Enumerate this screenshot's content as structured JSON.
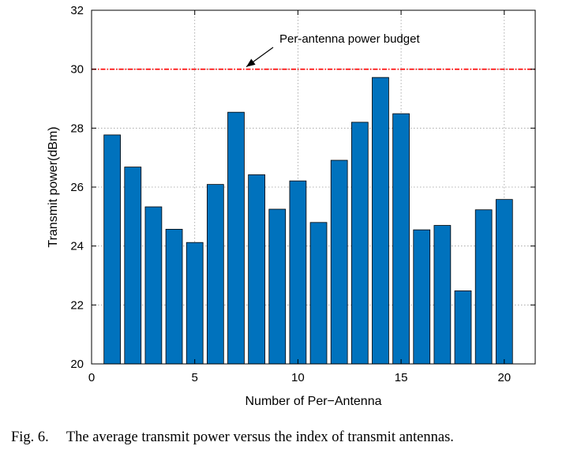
{
  "chart_data": {
    "type": "bar",
    "x": [
      1,
      2,
      3,
      4,
      5,
      6,
      7,
      8,
      9,
      10,
      11,
      12,
      13,
      14,
      15,
      16,
      17,
      18,
      19,
      20
    ],
    "values": [
      27.77,
      26.68,
      25.33,
      24.57,
      24.12,
      26.09,
      28.54,
      26.42,
      25.25,
      26.21,
      24.8,
      26.91,
      28.2,
      29.72,
      28.49,
      24.55,
      24.7,
      22.48,
      25.23,
      25.58
    ],
    "xlabel": "Number of Per−Antenna",
    "ylabel": "Transmit power(dBm)",
    "xlim": [
      0,
      21.5
    ],
    "ylim": [
      20,
      32
    ],
    "xticks": [
      0,
      5,
      10,
      15,
      20
    ],
    "yticks": [
      20,
      22,
      24,
      26,
      28,
      30,
      32
    ],
    "grid": true,
    "bar_color": "#0072BD",
    "reference_line": {
      "value": 30,
      "style": "dashed",
      "color": "#ff0000"
    },
    "annotation": {
      "text": "Per-antenna power budget",
      "arrow_target": [
        7.5,
        30
      ]
    }
  },
  "caption": {
    "label": "Fig. 6.",
    "text": "The average transmit power versus the index of transmit antennas."
  }
}
